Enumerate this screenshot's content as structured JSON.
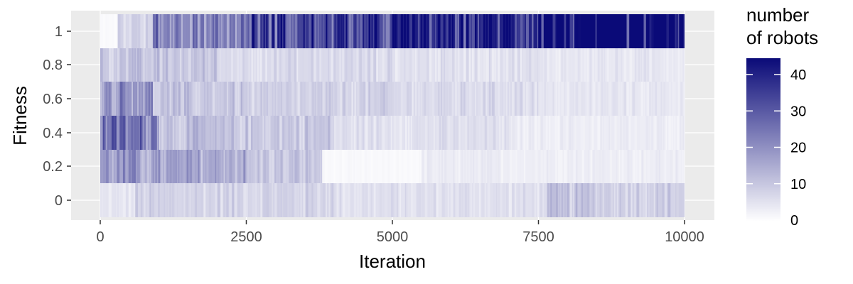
{
  "chart_data": {
    "type": "heatmap",
    "title": "",
    "xlabel": "Iteration",
    "ylabel": "Fitness",
    "xlim": [
      0,
      10000
    ],
    "x_ticks": [
      "0",
      "2500",
      "5000",
      "7500",
      "10000"
    ],
    "y_categories": [
      "0",
      "0.2",
      "0.4",
      "0.6",
      "0.8",
      "1"
    ],
    "grid": true,
    "legend": {
      "title_lines": [
        "number",
        "of robots"
      ],
      "ticks": [
        "0",
        "10",
        "20",
        "30",
        "40"
      ],
      "range": [
        0,
        40
      ],
      "placement": "right",
      "color_low": "#ffffff",
      "color_high": "#0a0a78"
    },
    "rows": [
      {
        "fitness": "0",
        "segments": [
          [
            0,
            600,
            4
          ],
          [
            600,
            4000,
            7
          ],
          [
            4000,
            6800,
            5
          ],
          [
            6800,
            7600,
            5
          ],
          [
            7600,
            8500,
            9
          ],
          [
            8500,
            10000,
            8
          ]
        ]
      },
      {
        "fitness": "0.2",
        "segments": [
          [
            0,
            700,
            16
          ],
          [
            700,
            2500,
            14
          ],
          [
            2500,
            3800,
            9
          ],
          [
            3800,
            5500,
            1
          ],
          [
            5500,
            8000,
            3
          ],
          [
            8000,
            10000,
            3
          ]
        ]
      },
      {
        "fitness": "0.4",
        "segments": [
          [
            0,
            1000,
            22
          ],
          [
            1000,
            2000,
            10
          ],
          [
            2000,
            4000,
            9
          ],
          [
            4000,
            7000,
            5
          ],
          [
            7000,
            10000,
            3
          ]
        ]
      },
      {
        "fitness": "0.6",
        "segments": [
          [
            0,
            900,
            18
          ],
          [
            900,
            2500,
            9
          ],
          [
            2500,
            5000,
            7
          ],
          [
            5000,
            7500,
            6
          ],
          [
            7500,
            10000,
            4
          ]
        ]
      },
      {
        "fitness": "0.8",
        "segments": [
          [
            0,
            2000,
            9
          ],
          [
            2000,
            5000,
            6
          ],
          [
            5000,
            7500,
            5
          ],
          [
            7500,
            10000,
            4
          ]
        ]
      },
      {
        "fitness": "1",
        "segments": [
          [
            0,
            300,
            1
          ],
          [
            300,
            900,
            7
          ],
          [
            900,
            2500,
            20
          ],
          [
            2500,
            5000,
            30
          ],
          [
            5000,
            7500,
            36
          ],
          [
            7500,
            10000,
            40
          ]
        ]
      }
    ]
  }
}
